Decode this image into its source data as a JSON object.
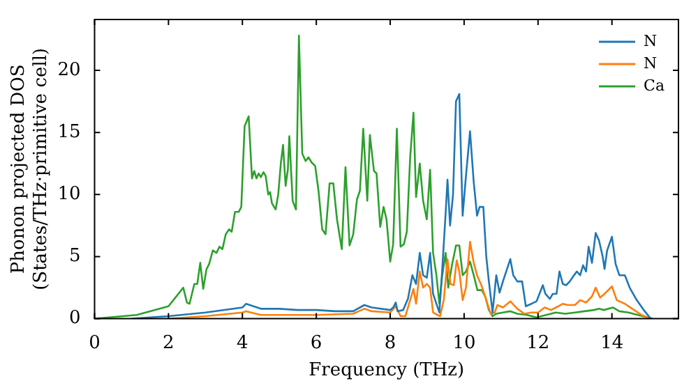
{
  "chart_data": {
    "type": "line",
    "xlabel": "Frequency (THz)",
    "ylabel": "Phonon projected DOS\n(States/THz·primitive cell)",
    "xlim": [
      0,
      15.8
    ],
    "xticks": [
      0,
      2,
      4,
      6,
      8,
      10,
      12,
      14
    ],
    "ylim": [
      0,
      24.1
    ],
    "yticks": [
      0,
      5,
      10,
      15,
      20
    ],
    "legend": "top right",
    "marker": "none",
    "line_style": "solid",
    "series": [
      {
        "name": "N",
        "color": "#1f77b4",
        "x": [
          1,
          2,
          3,
          4,
          4.1,
          4.5,
          5,
          5.5,
          6,
          6.5,
          7,
          7.3,
          7.5,
          8,
          8.08,
          8.15,
          8.2,
          8.35,
          8.48,
          8.6,
          8.7,
          8.8,
          8.89,
          8.99,
          9.08,
          9.16,
          9.25,
          9.33,
          9.4,
          9.5,
          9.55,
          9.62,
          9.7,
          9.78,
          9.87,
          9.96,
          10.05,
          10.16,
          10.26,
          10.35,
          10.42,
          10.52,
          10.6,
          10.67,
          10.77,
          10.87,
          10.96,
          11.05,
          11.25,
          11.33,
          11.44,
          11.57,
          11.67,
          11.82,
          11.96,
          12.13,
          12.2,
          12.32,
          12.4,
          12.5,
          12.58,
          12.67,
          12.76,
          12.86,
          12.95,
          13.05,
          13.14,
          13.22,
          13.3,
          13.37,
          13.46,
          13.56,
          13.65,
          13.75,
          13.8,
          13.87,
          14,
          14.1,
          14.2,
          14.35,
          14.48,
          14.67,
          14.86,
          15.05
        ],
        "values": [
          0,
          0.2,
          0.5,
          0.9,
          1.2,
          0.8,
          0.8,
          0.7,
          0.7,
          0.6,
          0.6,
          1.1,
          0.9,
          0.7,
          0.9,
          1.3,
          0.6,
          0.7,
          1.6,
          3.5,
          2.8,
          5.3,
          3.5,
          3.3,
          5.3,
          2,
          1.2,
          0.5,
          3.6,
          8.5,
          11.2,
          7.5,
          10,
          17.5,
          18.1,
          8.3,
          11.5,
          15.1,
          11,
          8.3,
          9,
          9,
          5,
          3,
          0.5,
          3.5,
          2.1,
          3,
          4.8,
          3.5,
          3,
          3,
          1,
          1.2,
          1.4,
          2.7,
          2,
          1.6,
          2,
          2,
          3.8,
          2.8,
          2.7,
          3,
          3.4,
          3.8,
          3.5,
          4.3,
          3.8,
          5.8,
          4.5,
          6.9,
          6.3,
          5,
          4,
          5.5,
          6.6,
          4.4,
          3.5,
          3.5,
          2.5,
          1.5,
          0.7,
          0
        ]
      },
      {
        "name": "N",
        "color": "#ff7f0e",
        "x": [
          2,
          3,
          4,
          4.1,
          4.5,
          5,
          6,
          7,
          7.3,
          7.5,
          8,
          8.15,
          8.28,
          8.41,
          8.54,
          8.63,
          8.7,
          8.8,
          8.89,
          8.99,
          9.08,
          9.16,
          9.28,
          9.35,
          9.45,
          9.55,
          9.63,
          9.72,
          9.8,
          9.87,
          9.96,
          10.05,
          10.16,
          10.26,
          10.35,
          10.48,
          10.6,
          10.72,
          10.83,
          10.9,
          11.05,
          11.25,
          11.44,
          11.63,
          11.82,
          12,
          12.18,
          12.35,
          12.55,
          12.67,
          12.8,
          13,
          13.14,
          13.3,
          13.46,
          13.56,
          13.68,
          13.8,
          14,
          14.13,
          14.35,
          14.55,
          14.8,
          15.05
        ],
        "values": [
          0,
          0.2,
          0.5,
          0.6,
          0.3,
          0.3,
          0.3,
          0.4,
          0.8,
          0.6,
          0.5,
          1,
          0.2,
          0.2,
          1.5,
          2.4,
          1.2,
          3.8,
          2.5,
          2.8,
          2.5,
          0.5,
          0.3,
          0.2,
          1.5,
          4.8,
          2.8,
          2.7,
          4.7,
          3.8,
          1.5,
          2.5,
          6.2,
          4.5,
          3.5,
          2.6,
          1.5,
          0.4,
          0.5,
          1.1,
          0.9,
          1.4,
          0.8,
          0.4,
          0.5,
          0.5,
          0.9,
          0.7,
          1,
          1.2,
          1.1,
          1.1,
          1.5,
          1.3,
          1.8,
          2.5,
          1.7,
          2,
          2.6,
          1.5,
          1.2,
          0.8,
          0.3,
          0
        ]
      },
      {
        "name": "Ca",
        "color": "#2ca02c",
        "x": [
          0,
          1.14,
          2,
          2.4,
          2.5,
          2.57,
          2.7,
          2.78,
          2.86,
          2.94,
          3.03,
          3.1,
          3.2,
          3.3,
          3.38,
          3.46,
          3.55,
          3.64,
          3.71,
          3.8,
          3.9,
          3.97,
          4.06,
          4.17,
          4.26,
          4.32,
          4.38,
          4.44,
          4.5,
          4.57,
          4.63,
          4.7,
          4.75,
          4.8,
          4.9,
          4.97,
          5.04,
          5.1,
          5.17,
          5.23,
          5.27,
          5.36,
          5.45,
          5.53,
          5.62,
          5.71,
          5.79,
          5.87,
          5.97,
          6.06,
          6.16,
          6.25,
          6.36,
          6.46,
          6.56,
          6.69,
          6.79,
          6.9,
          7,
          7.1,
          7.18,
          7.27,
          7.38,
          7.45,
          7.56,
          7.63,
          7.73,
          7.82,
          7.9,
          8,
          8.08,
          8.18,
          8.28,
          8.37,
          8.45,
          8.54,
          8.63,
          8.7,
          8.8,
          8.89,
          8.99,
          9.08,
          9.16,
          9.25,
          9.33,
          9.4,
          9.5,
          9.57,
          9.67,
          9.78,
          9.87,
          9.96,
          10.05,
          10.16,
          10.26,
          10.36,
          10.48,
          10.57,
          10.67,
          10.77,
          10.87,
          11.05,
          11.25,
          11.44,
          11.7,
          11.96,
          12.22,
          12.48,
          12.74,
          13,
          13.26,
          13.52,
          13.65,
          13.78,
          14.03,
          14.2,
          14.45,
          14.7,
          14.96,
          15.1
        ],
        "values": [
          0,
          0.3,
          1,
          2.5,
          1.3,
          1.2,
          2.8,
          2.8,
          4.5,
          2.4,
          4,
          4.4,
          5.5,
          5.3,
          5.8,
          5.6,
          6.8,
          7.2,
          7,
          8.6,
          8.6,
          9,
          15.5,
          16.3,
          11.3,
          11.9,
          11.3,
          11.7,
          11.4,
          11.8,
          11.5,
          10,
          10.2,
          9.3,
          8.8,
          10,
          12.5,
          14,
          10.7,
          12,
          14.7,
          9.5,
          8.8,
          22.8,
          13.3,
          12.7,
          13,
          12.6,
          12.3,
          10.3,
          7.2,
          6.8,
          10.9,
          10.9,
          8,
          5.6,
          12.2,
          5.9,
          6.8,
          9.6,
          10.3,
          15.3,
          9.5,
          14.8,
          11.9,
          11.7,
          7.4,
          9,
          8,
          4.6,
          6,
          15.3,
          5.8,
          6,
          7,
          13,
          16.6,
          9.8,
          12.5,
          9.5,
          8,
          12,
          5.3,
          3.5,
          1.2,
          3.3,
          5.3,
          2.5,
          4.3,
          5.9,
          5.9,
          3.5,
          3.8,
          4.6,
          3.5,
          2.3,
          2.3,
          1.8,
          0.7,
          0.2,
          0.4,
          0.5,
          0.6,
          0.4,
          0.3,
          0.1,
          0.3,
          0.5,
          0.4,
          0.5,
          0.6,
          0.7,
          0.8,
          0.7,
          0.9,
          0.6,
          0.5,
          0.3,
          0.1,
          0
        ]
      }
    ]
  }
}
